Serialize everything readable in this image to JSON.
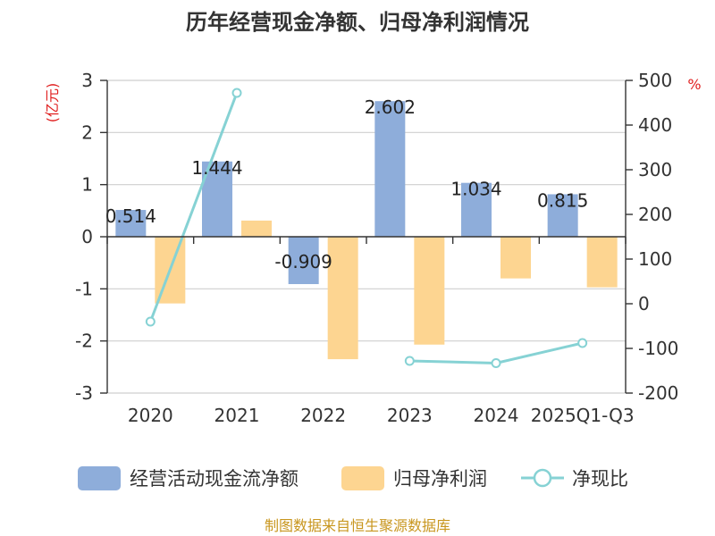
{
  "chart_data": {
    "type": "bar",
    "title": "历年经营现金净额、归母净利润情况",
    "ylabel_left": "(亿元)",
    "ylabel_right": "%",
    "source": "制图数据来自恒生聚源数据库",
    "categories": [
      "2020",
      "2021",
      "2022",
      "2023",
      "2024",
      "2025Q1-Q3"
    ],
    "y_left": {
      "min": -3,
      "max": 3,
      "ticks": [
        -3,
        -2,
        -1,
        0,
        1,
        2,
        3
      ]
    },
    "y_right": {
      "min": -200,
      "max": 500,
      "ticks": [
        -200,
        -100,
        0,
        100,
        200,
        300,
        400,
        500
      ]
    },
    "series": [
      {
        "name": "经营活动现金流净额",
        "kind": "bar",
        "axis": "left",
        "color": "#8eadda",
        "values": [
          0.514,
          1.444,
          -0.909,
          2.602,
          1.034,
          0.815
        ],
        "labels": [
          "0.514",
          "1.444",
          "-0.909",
          "2.602",
          "1.034",
          "0.815"
        ]
      },
      {
        "name": "归母净利润",
        "kind": "bar",
        "axis": "left",
        "color": "#fdd591",
        "values": [
          -1.28,
          0.31,
          -2.35,
          -2.07,
          -0.8,
          -0.97
        ]
      },
      {
        "name": "净现比",
        "kind": "line",
        "axis": "right",
        "color": "#86d2d4",
        "segments": [
          [
            [
              0,
              -40
            ],
            [
              1,
              472
            ]
          ],
          [
            [
              3,
              -128
            ],
            [
              4,
              -133
            ],
            [
              5,
              -88
            ]
          ]
        ]
      }
    ],
    "grid": true,
    "legend": "bottom"
  }
}
